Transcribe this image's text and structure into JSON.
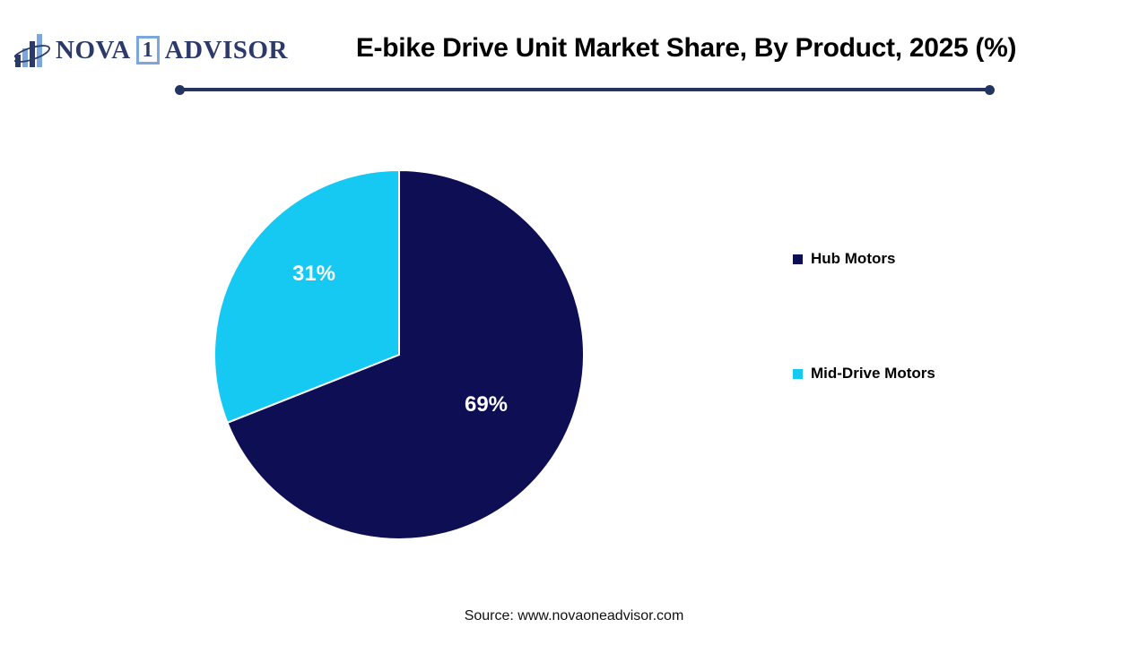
{
  "logo": {
    "icon": "bar-chart-swoosh-icon",
    "name_part1": "NOVA",
    "badge": "1",
    "name_part2": "ADVISOR",
    "colors": {
      "navy": "#2C3A6A",
      "light_blue": "#7BA7DC"
    }
  },
  "header": {
    "title": "E-bike Drive Unit Market Share, By Product, 2025 (%)",
    "divider_color": "#223560"
  },
  "chart_data": {
    "type": "pie",
    "title": "E-bike Drive Unit Market Share, By Product, 2025 (%)",
    "categories": [
      "Hub Motors",
      "Mid-Drive Motors"
    ],
    "values": [
      69,
      31
    ],
    "unit": "%",
    "slice_labels": [
      "69%",
      "31%"
    ],
    "colors": [
      "#0E0E54",
      "#15C9F2"
    ],
    "slice_label_color": "#FFFFFF",
    "slice_separator_color": "#FFFFFF",
    "start_angle": "12 o'clock",
    "direction": "clockwise",
    "legend_position": "right"
  },
  "legend": {
    "items": [
      {
        "label": "Hub Motors",
        "color": "#0E0E54"
      },
      {
        "label": "Mid-Drive Motors",
        "color": "#15C9F2"
      }
    ]
  },
  "footer": {
    "source": "Source: www.novaoneadvisor.com"
  }
}
